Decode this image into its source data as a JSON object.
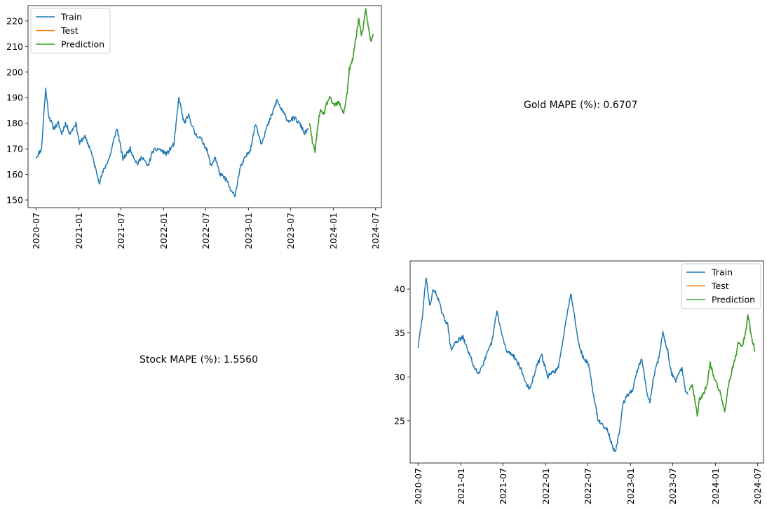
{
  "colors": {
    "train": "#1f77b4",
    "test": "#ff7f0e",
    "prediction": "#2ca02c"
  },
  "captions": {
    "gold": "Gold MAPE (%): 0.6707",
    "stock": "Stock MAPE (%): 1.5560"
  },
  "chart_data": [
    {
      "type": "line",
      "title": "",
      "xlabel": "",
      "ylabel": "",
      "xlim": [
        "2020-05-28",
        "2024-07-26"
      ],
      "ylim": [
        147,
        226
      ],
      "x_ticks": [
        "2020-07",
        "2021-01",
        "2021-07",
        "2022-01",
        "2022-07",
        "2023-01",
        "2023-07",
        "2024-01",
        "2024-07"
      ],
      "y_ticks": [
        150,
        160,
        170,
        180,
        190,
        200,
        210,
        220
      ],
      "grid": false,
      "legend": {
        "placement": "upper-left",
        "entries": [
          "Train",
          "Test",
          "Prediction"
        ]
      },
      "series": [
        {
          "name": "Train",
          "color": "#1f77b4",
          "points": [
            [
              "2020-07-01",
              166.5
            ],
            [
              "2020-07-25",
              170
            ],
            [
              "2020-08-05",
              185
            ],
            [
              "2020-08-12",
              193.5
            ],
            [
              "2020-08-25",
              183
            ],
            [
              "2020-09-15",
              178
            ],
            [
              "2020-10-05",
              180
            ],
            [
              "2020-10-20",
              176
            ],
            [
              "2020-11-05",
              180
            ],
            [
              "2020-11-25",
              176
            ],
            [
              "2020-12-20",
              180
            ],
            [
              "2021-01-05",
              172
            ],
            [
              "2021-01-25",
              175
            ],
            [
              "2021-02-20",
              170
            ],
            [
              "2021-03-15",
              162
            ],
            [
              "2021-03-31",
              157
            ],
            [
              "2021-04-20",
              162
            ],
            [
              "2021-05-15",
              167
            ],
            [
              "2021-06-05",
              175
            ],
            [
              "2021-06-15",
              178
            ],
            [
              "2021-07-10",
              166
            ],
            [
              "2021-08-10",
              170
            ],
            [
              "2021-09-10",
              164
            ],
            [
              "2021-10-01",
              167
            ],
            [
              "2021-10-25",
              163
            ],
            [
              "2021-11-15",
              169
            ],
            [
              "2021-12-10",
              170
            ],
            [
              "2022-01-15",
              168
            ],
            [
              "2022-02-15",
              172
            ],
            [
              "2022-03-08",
              190
            ],
            [
              "2022-03-30",
              180
            ],
            [
              "2022-04-20",
              183
            ],
            [
              "2022-05-15",
              176
            ],
            [
              "2022-06-10",
              174
            ],
            [
              "2022-07-05",
              170
            ],
            [
              "2022-07-25",
              163
            ],
            [
              "2022-08-10",
              167
            ],
            [
              "2022-09-01",
              160
            ],
            [
              "2022-09-28",
              158
            ],
            [
              "2022-10-20",
              153
            ],
            [
              "2022-11-05",
              152
            ],
            [
              "2022-11-25",
              162
            ],
            [
              "2022-12-15",
              166
            ],
            [
              "2023-01-10",
              170
            ],
            [
              "2023-02-01",
              180
            ],
            [
              "2023-02-25",
              172
            ],
            [
              "2023-03-20",
              178
            ],
            [
              "2023-04-10",
              183
            ],
            [
              "2023-05-04",
              189
            ],
            [
              "2023-05-25",
              185
            ],
            [
              "2023-06-20",
              181
            ],
            [
              "2023-07-20",
              182
            ],
            [
              "2023-08-15",
              179
            ],
            [
              "2023-08-31",
              176
            ],
            [
              "2023-09-15",
              178
            ]
          ]
        },
        {
          "name": "Test",
          "color": "#ff7f0e",
          "points": [
            [
              "2023-09-20",
              180
            ],
            [
              "2023-10-05",
              172
            ],
            [
              "2023-10-15",
              169
            ],
            [
              "2023-10-25",
              178
            ],
            [
              "2023-11-05",
              185
            ],
            [
              "2023-11-20",
              183
            ],
            [
              "2023-12-01",
              187
            ],
            [
              "2023-12-15",
              190
            ],
            [
              "2024-01-05",
              187
            ],
            [
              "2024-01-25",
              188
            ],
            [
              "2024-02-15",
              184
            ],
            [
              "2024-03-01",
              192
            ],
            [
              "2024-03-10",
              201
            ],
            [
              "2024-03-25",
              205
            ],
            [
              "2024-04-01",
              210
            ],
            [
              "2024-04-10",
              215
            ],
            [
              "2024-04-20",
              221
            ],
            [
              "2024-05-01",
              214
            ],
            [
              "2024-05-10",
              218
            ],
            [
              "2024-05-20",
              224.5
            ],
            [
              "2024-05-30",
              218
            ],
            [
              "2024-06-10",
              212
            ],
            [
              "2024-06-20",
              215
            ]
          ]
        },
        {
          "name": "Prediction",
          "color": "#2ca02c",
          "points": [
            [
              "2023-09-20",
              180
            ],
            [
              "2023-10-05",
              172
            ],
            [
              "2023-10-15",
              169
            ],
            [
              "2023-10-25",
              178
            ],
            [
              "2023-11-05",
              185
            ],
            [
              "2023-11-20",
              183
            ],
            [
              "2023-12-01",
              187
            ],
            [
              "2023-12-15",
              190
            ],
            [
              "2024-01-05",
              187
            ],
            [
              "2024-01-25",
              188
            ],
            [
              "2024-02-15",
              184
            ],
            [
              "2024-03-01",
              192
            ],
            [
              "2024-03-10",
              201
            ],
            [
              "2024-03-25",
              205
            ],
            [
              "2024-04-01",
              210
            ],
            [
              "2024-04-10",
              215
            ],
            [
              "2024-04-20",
              221
            ],
            [
              "2024-05-01",
              214
            ],
            [
              "2024-05-10",
              218
            ],
            [
              "2024-05-20",
              224.5
            ],
            [
              "2024-05-30",
              218
            ],
            [
              "2024-06-10",
              212
            ],
            [
              "2024-06-20",
              215
            ]
          ]
        }
      ]
    },
    {
      "type": "line",
      "title": "",
      "xlabel": "",
      "ylabel": "",
      "xlim": [
        "2020-05-28",
        "2024-07-26"
      ],
      "ylim": [
        20.2,
        43.2
      ],
      "x_ticks": [
        "2020-07",
        "2021-01",
        "2021-07",
        "2022-01",
        "2022-07",
        "2023-01",
        "2023-07",
        "2024-01",
        "2024-07"
      ],
      "y_ticks": [
        25,
        30,
        35,
        40
      ],
      "grid": false,
      "legend": {
        "placement": "upper-right",
        "entries": [
          "Train",
          "Test",
          "Prediction"
        ]
      },
      "series": [
        {
          "name": "Train",
          "color": "#1f77b4",
          "points": [
            [
              "2020-07-01",
              33.3
            ],
            [
              "2020-07-20",
              37
            ],
            [
              "2020-08-05",
              41.5
            ],
            [
              "2020-08-20",
              38
            ],
            [
              "2020-09-05",
              40
            ],
            [
              "2020-09-25",
              39
            ],
            [
              "2020-10-15",
              37
            ],
            [
              "2020-11-05",
              36
            ],
            [
              "2020-11-20",
              33
            ],
            [
              "2020-12-10",
              34
            ],
            [
              "2021-01-10",
              34.5
            ],
            [
              "2021-02-01",
              33
            ],
            [
              "2021-03-01",
              31
            ],
            [
              "2021-03-20",
              30.5
            ],
            [
              "2021-04-15",
              32
            ],
            [
              "2021-05-15",
              34
            ],
            [
              "2021-06-05",
              37.5
            ],
            [
              "2021-06-25",
              35
            ],
            [
              "2021-07-15",
              33
            ],
            [
              "2021-08-15",
              32.5
            ],
            [
              "2021-09-15",
              31
            ],
            [
              "2021-10-05",
              29.5
            ],
            [
              "2021-10-25",
              28.5
            ],
            [
              "2021-11-20",
              31
            ],
            [
              "2021-12-15",
              32.5
            ],
            [
              "2022-01-10",
              30
            ],
            [
              "2022-02-01",
              30.5
            ],
            [
              "2022-02-25",
              31
            ],
            [
              "2022-03-15",
              34
            ],
            [
              "2022-04-01",
              37
            ],
            [
              "2022-04-20",
              39.5
            ],
            [
              "2022-05-05",
              37
            ],
            [
              "2022-05-25",
              33.5
            ],
            [
              "2022-06-15",
              32
            ],
            [
              "2022-07-05",
              31.5
            ],
            [
              "2022-07-25",
              28
            ],
            [
              "2022-08-15",
              25
            ],
            [
              "2022-09-05",
              24.5
            ],
            [
              "2022-09-25",
              24
            ],
            [
              "2022-10-15",
              22
            ],
            [
              "2022-10-28",
              21.3
            ],
            [
              "2022-11-15",
              24
            ],
            [
              "2022-12-01",
              27
            ],
            [
              "2022-12-20",
              28
            ],
            [
              "2023-01-10",
              28.5
            ],
            [
              "2023-02-01",
              31
            ],
            [
              "2023-02-20",
              32
            ],
            [
              "2023-03-10",
              28.5
            ],
            [
              "2023-03-25",
              27
            ],
            [
              "2023-04-10",
              30
            ],
            [
              "2023-05-01",
              32
            ],
            [
              "2023-05-20",
              35
            ],
            [
              "2023-06-10",
              33
            ],
            [
              "2023-06-25",
              30.5
            ],
            [
              "2023-07-15",
              29.5
            ],
            [
              "2023-08-10",
              31
            ],
            [
              "2023-08-25",
              28.5
            ],
            [
              "2023-09-05",
              28
            ]
          ]
        },
        {
          "name": "Test",
          "color": "#ff7f0e",
          "points": [
            [
              "2023-09-10",
              28.5
            ],
            [
              "2023-09-25",
              29
            ],
            [
              "2023-10-05",
              27.5
            ],
            [
              "2023-10-15",
              25.7
            ],
            [
              "2023-10-25",
              27.5
            ],
            [
              "2023-11-10",
              28
            ],
            [
              "2023-11-25",
              29
            ],
            [
              "2023-12-10",
              31.5
            ],
            [
              "2023-12-25",
              30
            ],
            [
              "2024-01-10",
              29
            ],
            [
              "2024-01-25",
              28
            ],
            [
              "2024-02-10",
              26
            ],
            [
              "2024-02-25",
              29
            ],
            [
              "2024-03-10",
              30.5
            ],
            [
              "2024-03-25",
              32
            ],
            [
              "2024-04-10",
              34
            ],
            [
              "2024-04-25",
              33.5
            ],
            [
              "2024-05-10",
              35
            ],
            [
              "2024-05-20",
              37
            ],
            [
              "2024-05-30",
              35.5
            ],
            [
              "2024-06-10",
              34
            ],
            [
              "2024-06-20",
              33
            ]
          ]
        },
        {
          "name": "Prediction",
          "color": "#2ca02c",
          "points": [
            [
              "2023-09-10",
              28.5
            ],
            [
              "2023-09-25",
              29
            ],
            [
              "2023-10-05",
              27.5
            ],
            [
              "2023-10-15",
              25.7
            ],
            [
              "2023-10-25",
              27.5
            ],
            [
              "2023-11-10",
              28
            ],
            [
              "2023-11-25",
              29
            ],
            [
              "2023-12-10",
              31.5
            ],
            [
              "2023-12-25",
              30
            ],
            [
              "2024-01-10",
              29
            ],
            [
              "2024-01-25",
              28
            ],
            [
              "2024-02-10",
              26
            ],
            [
              "2024-02-25",
              29
            ],
            [
              "2024-03-10",
              30.5
            ],
            [
              "2024-03-25",
              32
            ],
            [
              "2024-04-10",
              34
            ],
            [
              "2024-04-25",
              33.5
            ],
            [
              "2024-05-10",
              35
            ],
            [
              "2024-05-20",
              37
            ],
            [
              "2024-05-30",
              35.5
            ],
            [
              "2024-06-10",
              34
            ],
            [
              "2024-06-20",
              33
            ]
          ]
        }
      ]
    }
  ]
}
